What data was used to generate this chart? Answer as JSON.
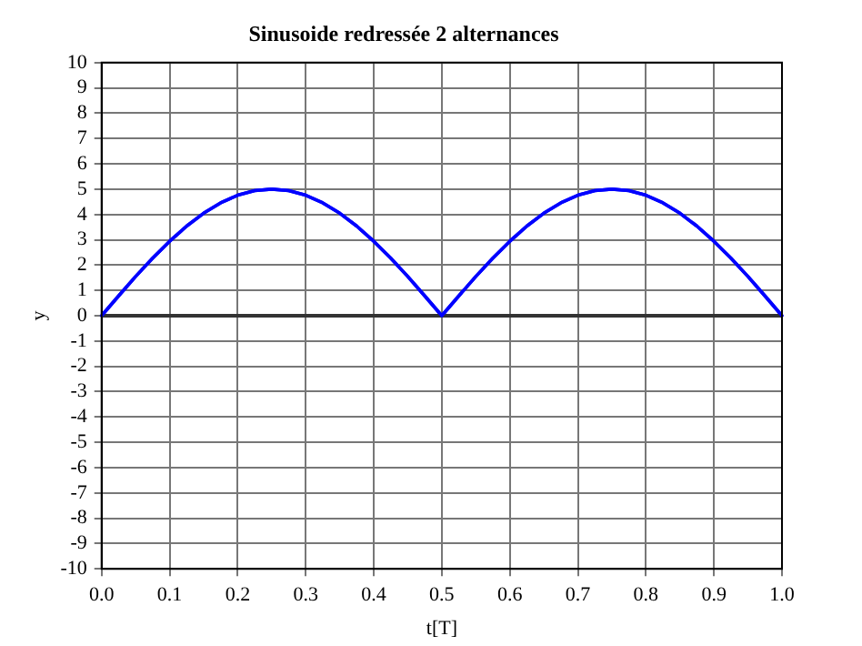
{
  "chart_data": {
    "type": "line",
    "title": "Sinusoide redressée 2 alternances",
    "xlabel": "t[T]",
    "ylabel": "y",
    "x": [
      0,
      0.025,
      0.05,
      0.075,
      0.1,
      0.125,
      0.15,
      0.175,
      0.2,
      0.225,
      0.25,
      0.275,
      0.3,
      0.325,
      0.35,
      0.375,
      0.4,
      0.425,
      0.45,
      0.475,
      0.5,
      0.525,
      0.55,
      0.575,
      0.6,
      0.625,
      0.65,
      0.675,
      0.7,
      0.725,
      0.75,
      0.775,
      0.8,
      0.825,
      0.85,
      0.875,
      0.9,
      0.925,
      0.95,
      0.975,
      1
    ],
    "series": [
      {
        "color": "#0000ff",
        "values": [
          0,
          0.78,
          1.55,
          2.27,
          2.94,
          3.54,
          4.05,
          4.46,
          4.76,
          4.94,
          5,
          4.94,
          4.76,
          4.46,
          4.05,
          3.54,
          2.94,
          2.27,
          1.55,
          0.78,
          0,
          0.78,
          1.55,
          2.27,
          2.94,
          3.54,
          4.05,
          4.46,
          4.76,
          4.94,
          5,
          4.94,
          4.76,
          4.46,
          4.05,
          3.54,
          2.94,
          2.27,
          1.55,
          0.78,
          0
        ]
      }
    ],
    "xlim": [
      0,
      1
    ],
    "xticks": [
      {
        "value": 0,
        "label": "0.0"
      },
      {
        "value": 0.1,
        "label": "0.1"
      },
      {
        "value": 0.2,
        "label": "0.2"
      },
      {
        "value": 0.3,
        "label": "0.3"
      },
      {
        "value": 0.4,
        "label": "0.4"
      },
      {
        "value": 0.5,
        "label": "0.5"
      },
      {
        "value": 0.6,
        "label": "0.6"
      },
      {
        "value": 0.7,
        "label": "0.7"
      },
      {
        "value": 0.8,
        "label": "0.8"
      },
      {
        "value": 0.9,
        "label": "0.9"
      },
      {
        "value": 1,
        "label": "1.0"
      }
    ],
    "ylim": [
      -10,
      10
    ],
    "yticks": [
      -10,
      -9,
      -8,
      -7,
      -6,
      -5,
      -4,
      -3,
      -2,
      -1,
      0,
      1,
      2,
      3,
      4,
      5,
      6,
      7,
      8,
      9,
      10
    ],
    "ref_lines": [
      {
        "axis": "y",
        "value": 0,
        "color": "#333333"
      }
    ],
    "grid": true,
    "legend": false,
    "marker": "none",
    "line_style": "solid"
  }
}
